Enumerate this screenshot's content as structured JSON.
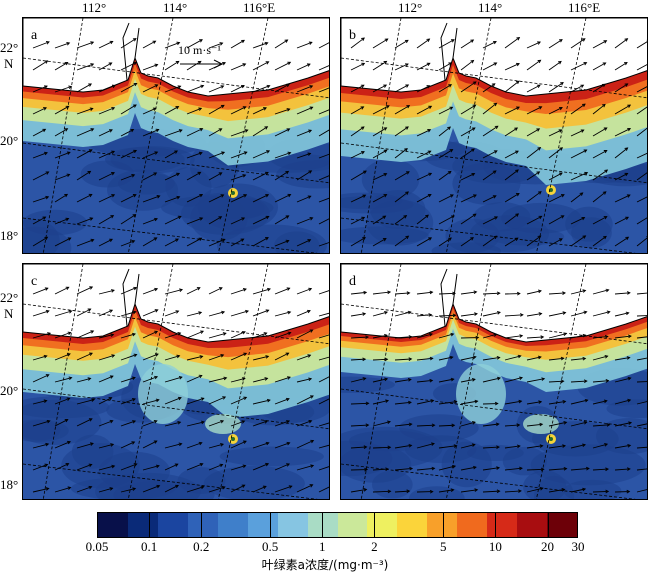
{
  "lon_labels": [
    "112°",
    "114°",
    "116°E"
  ],
  "lat_labels": [
    "22°",
    "N",
    "20°",
    "18°"
  ],
  "panels": [
    {
      "id": "a",
      "label": "a"
    },
    {
      "id": "b",
      "label": "b"
    },
    {
      "id": "c",
      "label": "c"
    },
    {
      "id": "d",
      "label": "d"
    }
  ],
  "reference_arrow": {
    "label": "10 m·s⁻¹",
    "speed": 10
  },
  "colorbar": {
    "title": "叶绿素a浓度/(mg·m⁻³)",
    "ticks": [
      "0.05",
      "0.1",
      "0.2",
      "0.5",
      "1",
      "2",
      "5",
      "10",
      "20",
      "30"
    ],
    "tick_values": [
      0.05,
      0.1,
      0.2,
      0.5,
      1,
      2,
      5,
      10,
      20,
      30
    ],
    "scale": "log",
    "range": [
      0.05,
      30
    ],
    "colors": [
      "#08104a",
      "#0a2a78",
      "#1b45a0",
      "#2f62b8",
      "#3f7fca",
      "#5aa0dc",
      "#86c5e2",
      "#a9dcc5",
      "#cbe89a",
      "#eef060",
      "#fbd43a",
      "#f8a02a",
      "#f06a1e",
      "#d62a18",
      "#a80d10",
      "#6d0008"
    ]
  },
  "land_color": "#ffffff",
  "sea_color": "#2c55a6"
}
